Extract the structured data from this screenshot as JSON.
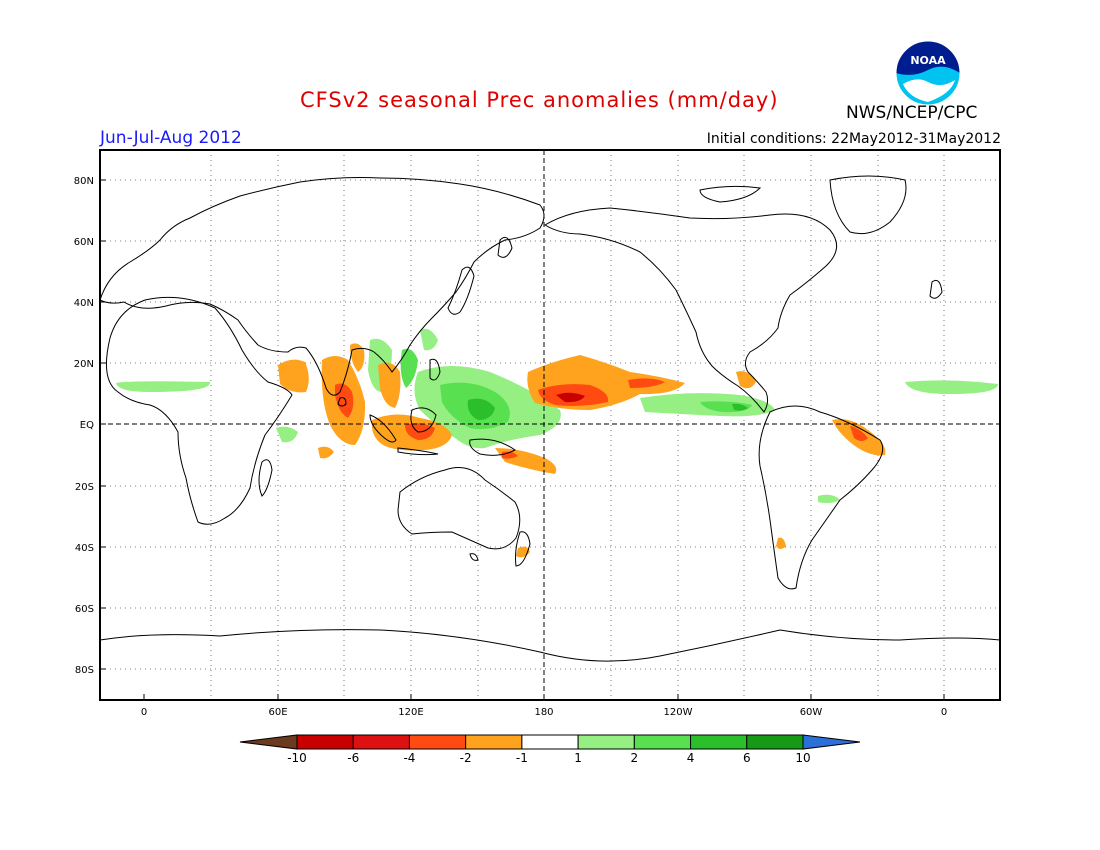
{
  "header": {
    "title": "CFSv2 seasonal Prec anomalies (mm/day)",
    "agency": "NWS/NCEP/CPC",
    "logo_text": "NOAA",
    "season": "Jun-Jul-Aug 2012",
    "initial_conditions": "Initial conditions: 22May2012-31May2012"
  },
  "map": {
    "projection": "cylindrical-equidistant",
    "lon_range": [
      0,
      360
    ],
    "lat_range": [
      -90,
      90
    ],
    "lat_ticks": [
      "80N",
      "60N",
      "40N",
      "20N",
      "EQ",
      "20S",
      "40S",
      "60S",
      "80S"
    ],
    "lon_ticks": [
      "0",
      "60E",
      "120E",
      "180",
      "120W",
      "60W",
      "0"
    ],
    "grid": "dotted",
    "reference_lines": [
      "equator",
      "dateline"
    ]
  },
  "colorbar": {
    "labels": [
      "-10",
      "-6",
      "-4",
      "-2",
      "-1",
      "1",
      "2",
      "4",
      "6",
      "10"
    ],
    "colors": [
      "#6b3a1f",
      "#c80000",
      "#dd1111",
      "#ff4a12",
      "#ffa31e",
      "#ffffff",
      "#95ef82",
      "#58e050",
      "#2bbf2b",
      "#169a16",
      "#2a70d8"
    ]
  }
}
